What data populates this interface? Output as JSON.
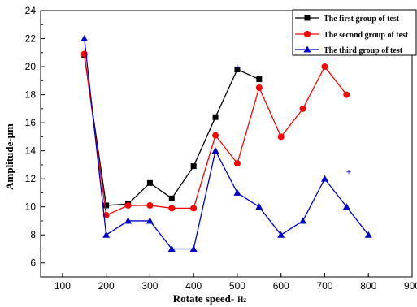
{
  "chart_data": {
    "type": "line",
    "xlabel": "Rotate speed-",
    "xlabel_unit": "Hz",
    "ylabel": "Amplitude-μm",
    "xlim": [
      50,
      900
    ],
    "ylim": [
      5,
      24
    ],
    "xticks": [
      100,
      200,
      300,
      400,
      500,
      600,
      700,
      800,
      900
    ],
    "yticks": [
      6,
      8,
      10,
      12,
      14,
      16,
      18,
      20,
      22,
      24
    ],
    "grid": false,
    "legend_position": "top-right",
    "series": [
      {
        "name": "The first group of test",
        "color": "#000000",
        "marker": "square",
        "x": [
          150,
          200,
          250,
          300,
          350,
          400,
          450,
          500,
          550
        ],
        "y": [
          20.8,
          10.1,
          10.2,
          11.7,
          10.6,
          12.9,
          16.4,
          19.8,
          19.1
        ]
      },
      {
        "name": "The second group of test",
        "color": "#ff0000",
        "marker": "circle",
        "x": [
          150,
          200,
          250,
          300,
          350,
          400,
          450,
          500,
          550,
          600,
          650,
          700,
          750
        ],
        "y": [
          20.9,
          9.4,
          10.1,
          10.1,
          9.9,
          9.9,
          15.1,
          13.1,
          18.5,
          15.0,
          17.0,
          20.0,
          18.0
        ]
      },
      {
        "name": "The third group of test",
        "color": "#0000cc",
        "marker": "triangle",
        "x": [
          150,
          200,
          250,
          300,
          350,
          400,
          450,
          500,
          550,
          600,
          650,
          700,
          750,
          800
        ],
        "y": [
          22,
          8,
          9,
          9,
          7,
          7,
          14,
          11,
          10,
          8,
          9,
          12,
          10,
          8
        ]
      }
    ],
    "stray_marks": [
      {
        "x": 500,
        "y": 20.0,
        "color": "#0000cc",
        "symbol": "+"
      },
      {
        "x": 755,
        "y": 12.5,
        "color": "#0000cc",
        "symbol": "+"
      }
    ]
  }
}
